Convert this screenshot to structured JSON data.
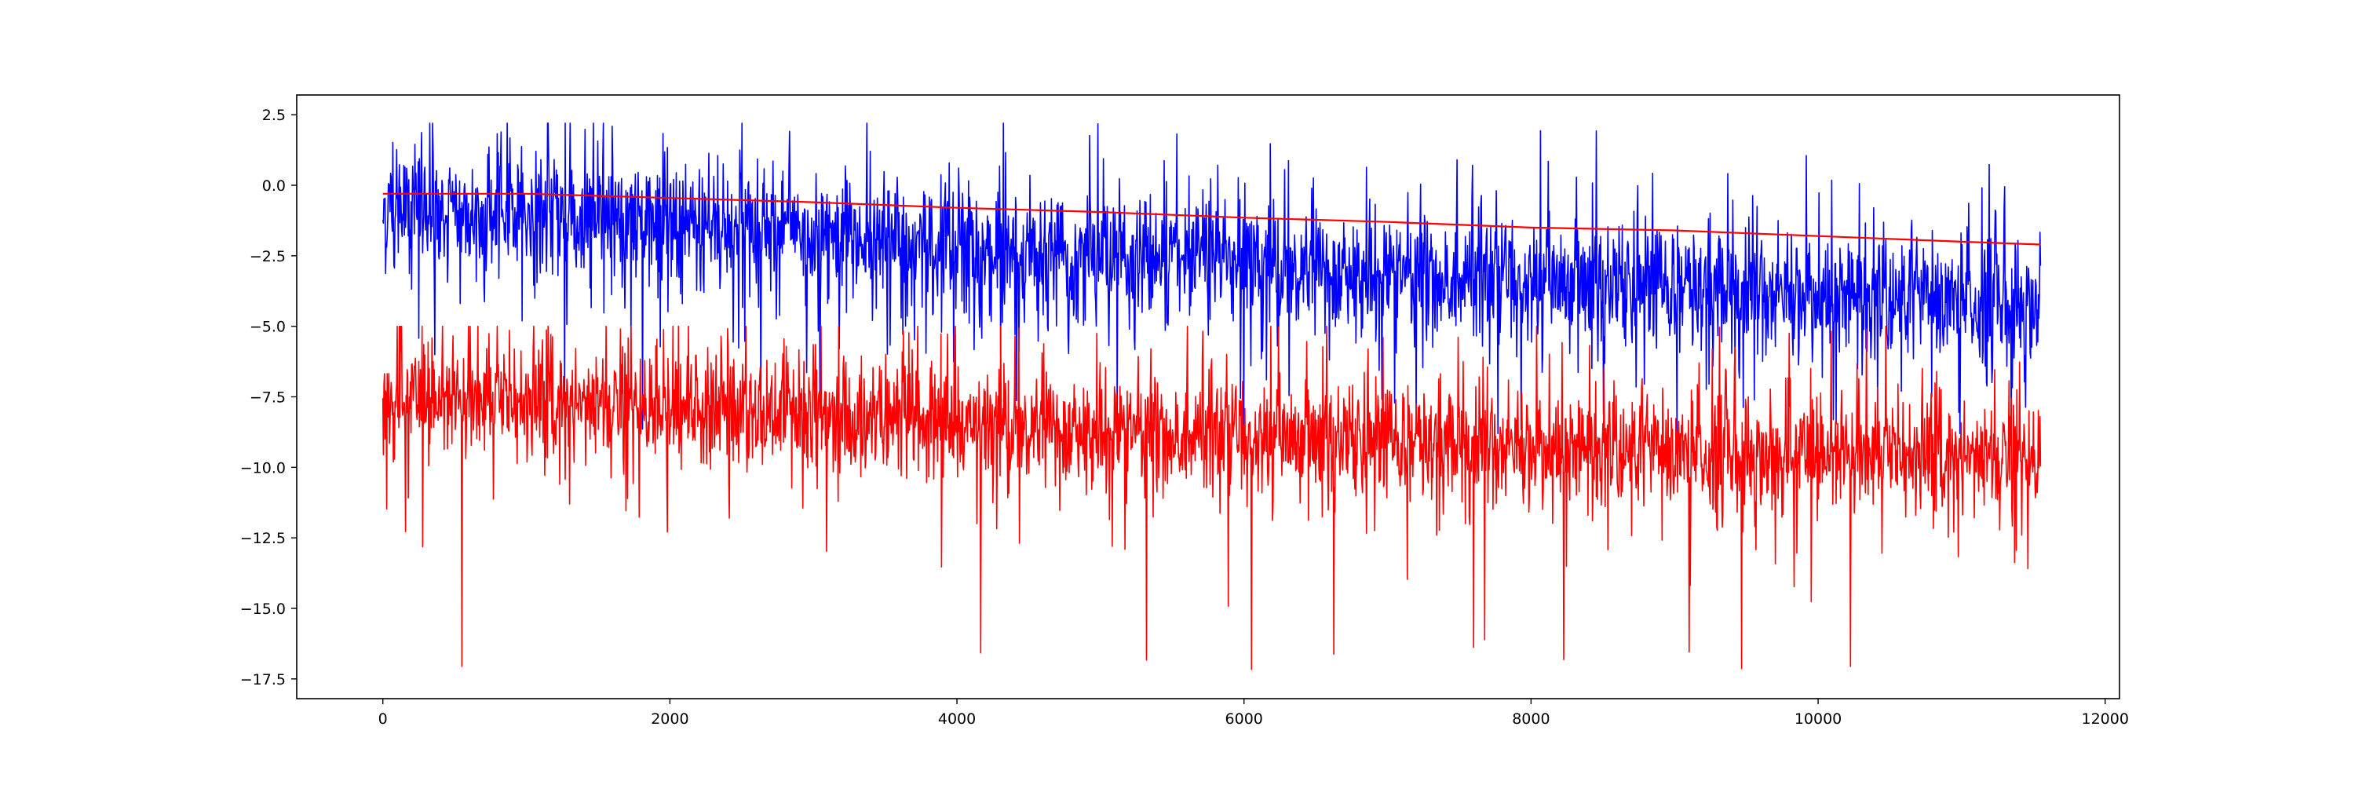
{
  "chart_data": {
    "type": "line",
    "title": "",
    "xlabel": "",
    "ylabel": "",
    "xlim": [
      -600,
      12100
    ],
    "ylim": [
      -18.2,
      3.2
    ],
    "x_ticks": [
      0,
      2000,
      4000,
      6000,
      8000,
      10000,
      12000
    ],
    "y_ticks": [
      2.5,
      0.0,
      -2.5,
      -5.0,
      -7.5,
      -10.0,
      -12.5,
      -15.0,
      -17.5
    ],
    "x_tick_labels": [
      "0",
      "2000",
      "4000",
      "6000",
      "8000",
      "10000",
      "12000"
    ],
    "y_tick_labels": [
      "2.5",
      "0.0",
      "−2.5",
      "−5.0",
      "−7.5",
      "−10.0",
      "−12.5",
      "−15.0",
      "−17.5"
    ],
    "grid": false,
    "legend": "none",
    "x_max": 11550,
    "series": [
      {
        "color": "#0000ff",
        "style": "noisy",
        "points": 11550,
        "trend_x": [
          0,
          2000,
          4000,
          6000,
          8000,
          10000,
          11550
        ],
        "trend_y": [
          -0.9,
          -1.4,
          -2.2,
          -2.8,
          -3.4,
          -3.9,
          -4.2
        ],
        "spread": 1.2,
        "peak_max": 2.2,
        "trough_min": -8.8
      },
      {
        "color": "#ff0000",
        "style": "noisy",
        "points": 11550,
        "trend_x": [
          0,
          2000,
          4000,
          6000,
          8000,
          10000,
          11550
        ],
        "trend_y": [
          -7.6,
          -7.9,
          -8.4,
          -8.9,
          -9.3,
          -9.6,
          -9.7
        ],
        "spread": 1.1,
        "peak_max": -5.0,
        "trough_min": -17.3
      },
      {
        "color": "#ff0000",
        "style": "smooth",
        "x": [
          0,
          1000,
          2000,
          3000,
          4000,
          5000,
          6000,
          7000,
          8000,
          9000,
          10000,
          11000,
          11550
        ],
        "y": [
          -0.3,
          -0.3,
          -0.45,
          -0.6,
          -0.8,
          -0.95,
          -1.15,
          -1.3,
          -1.5,
          -1.6,
          -1.8,
          -2.0,
          -2.1
        ]
      }
    ]
  }
}
